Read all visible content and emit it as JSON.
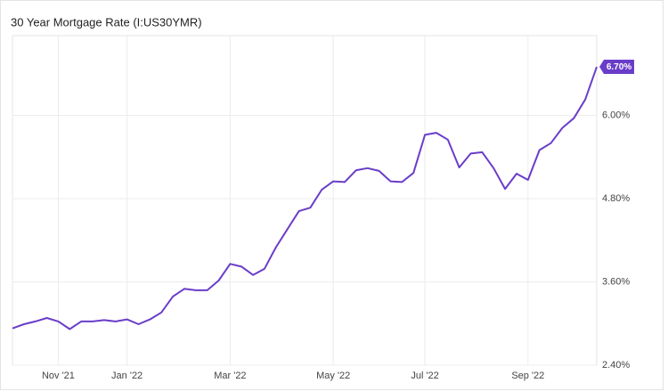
{
  "chart_data": {
    "type": "line",
    "title": "30 Year Mortgage Rate (I:US30YMR)",
    "categories": [
      null,
      null,
      null,
      null,
      "Nov '21",
      null,
      null,
      null,
      null,
      null,
      "Jan '22",
      null,
      null,
      null,
      null,
      null,
      null,
      null,
      null,
      "Mar '22",
      null,
      null,
      null,
      null,
      null,
      null,
      null,
      null,
      "May '22",
      null,
      null,
      null,
      null,
      null,
      null,
      null,
      "Jul '22",
      null,
      null,
      null,
      null,
      null,
      null,
      null,
      null,
      "Sep '22",
      null,
      null,
      null,
      null,
      null,
      null
    ],
    "series": [
      {
        "name": "30 Year Mortgage Rate",
        "color": "#6a3dc9",
        "values": [
          2.93,
          2.99,
          3.03,
          3.08,
          3.03,
          2.92,
          3.03,
          3.03,
          3.05,
          3.03,
          3.06,
          2.99,
          3.06,
          3.16,
          3.39,
          3.5,
          3.48,
          3.48,
          3.62,
          3.86,
          3.82,
          3.7,
          3.79,
          4.1,
          4.36,
          4.62,
          4.67,
          4.93,
          5.05,
          5.04,
          5.21,
          5.24,
          5.2,
          5.05,
          5.04,
          5.17,
          5.72,
          5.75,
          5.65,
          5.25,
          5.45,
          5.47,
          5.24,
          4.94,
          5.16,
          5.07,
          5.5,
          5.6,
          5.82,
          5.96,
          6.23,
          6.7
        ],
        "value_labels": [
          null,
          null,
          null,
          null,
          null,
          null,
          null,
          null,
          null,
          null,
          null,
          null,
          null,
          null,
          null,
          null,
          null,
          null,
          null,
          null,
          null,
          null,
          null,
          null,
          null,
          null,
          null,
          null,
          null,
          null,
          null,
          null,
          null,
          null,
          null,
          null,
          null,
          null,
          null,
          null,
          null,
          null,
          null,
          null,
          null,
          null,
          null,
          null,
          null,
          null,
          null,
          "6.70%"
        ]
      }
    ],
    "ylim": [
      2.4,
      7.15
    ],
    "yticks": [
      {
        "value": 2.4,
        "label": "2.40%"
      },
      {
        "value": 3.6,
        "label": "3.60%"
      },
      {
        "value": 4.8,
        "label": "4.80%"
      },
      {
        "value": 6.0,
        "label": "6.00%"
      }
    ],
    "grid": true
  }
}
